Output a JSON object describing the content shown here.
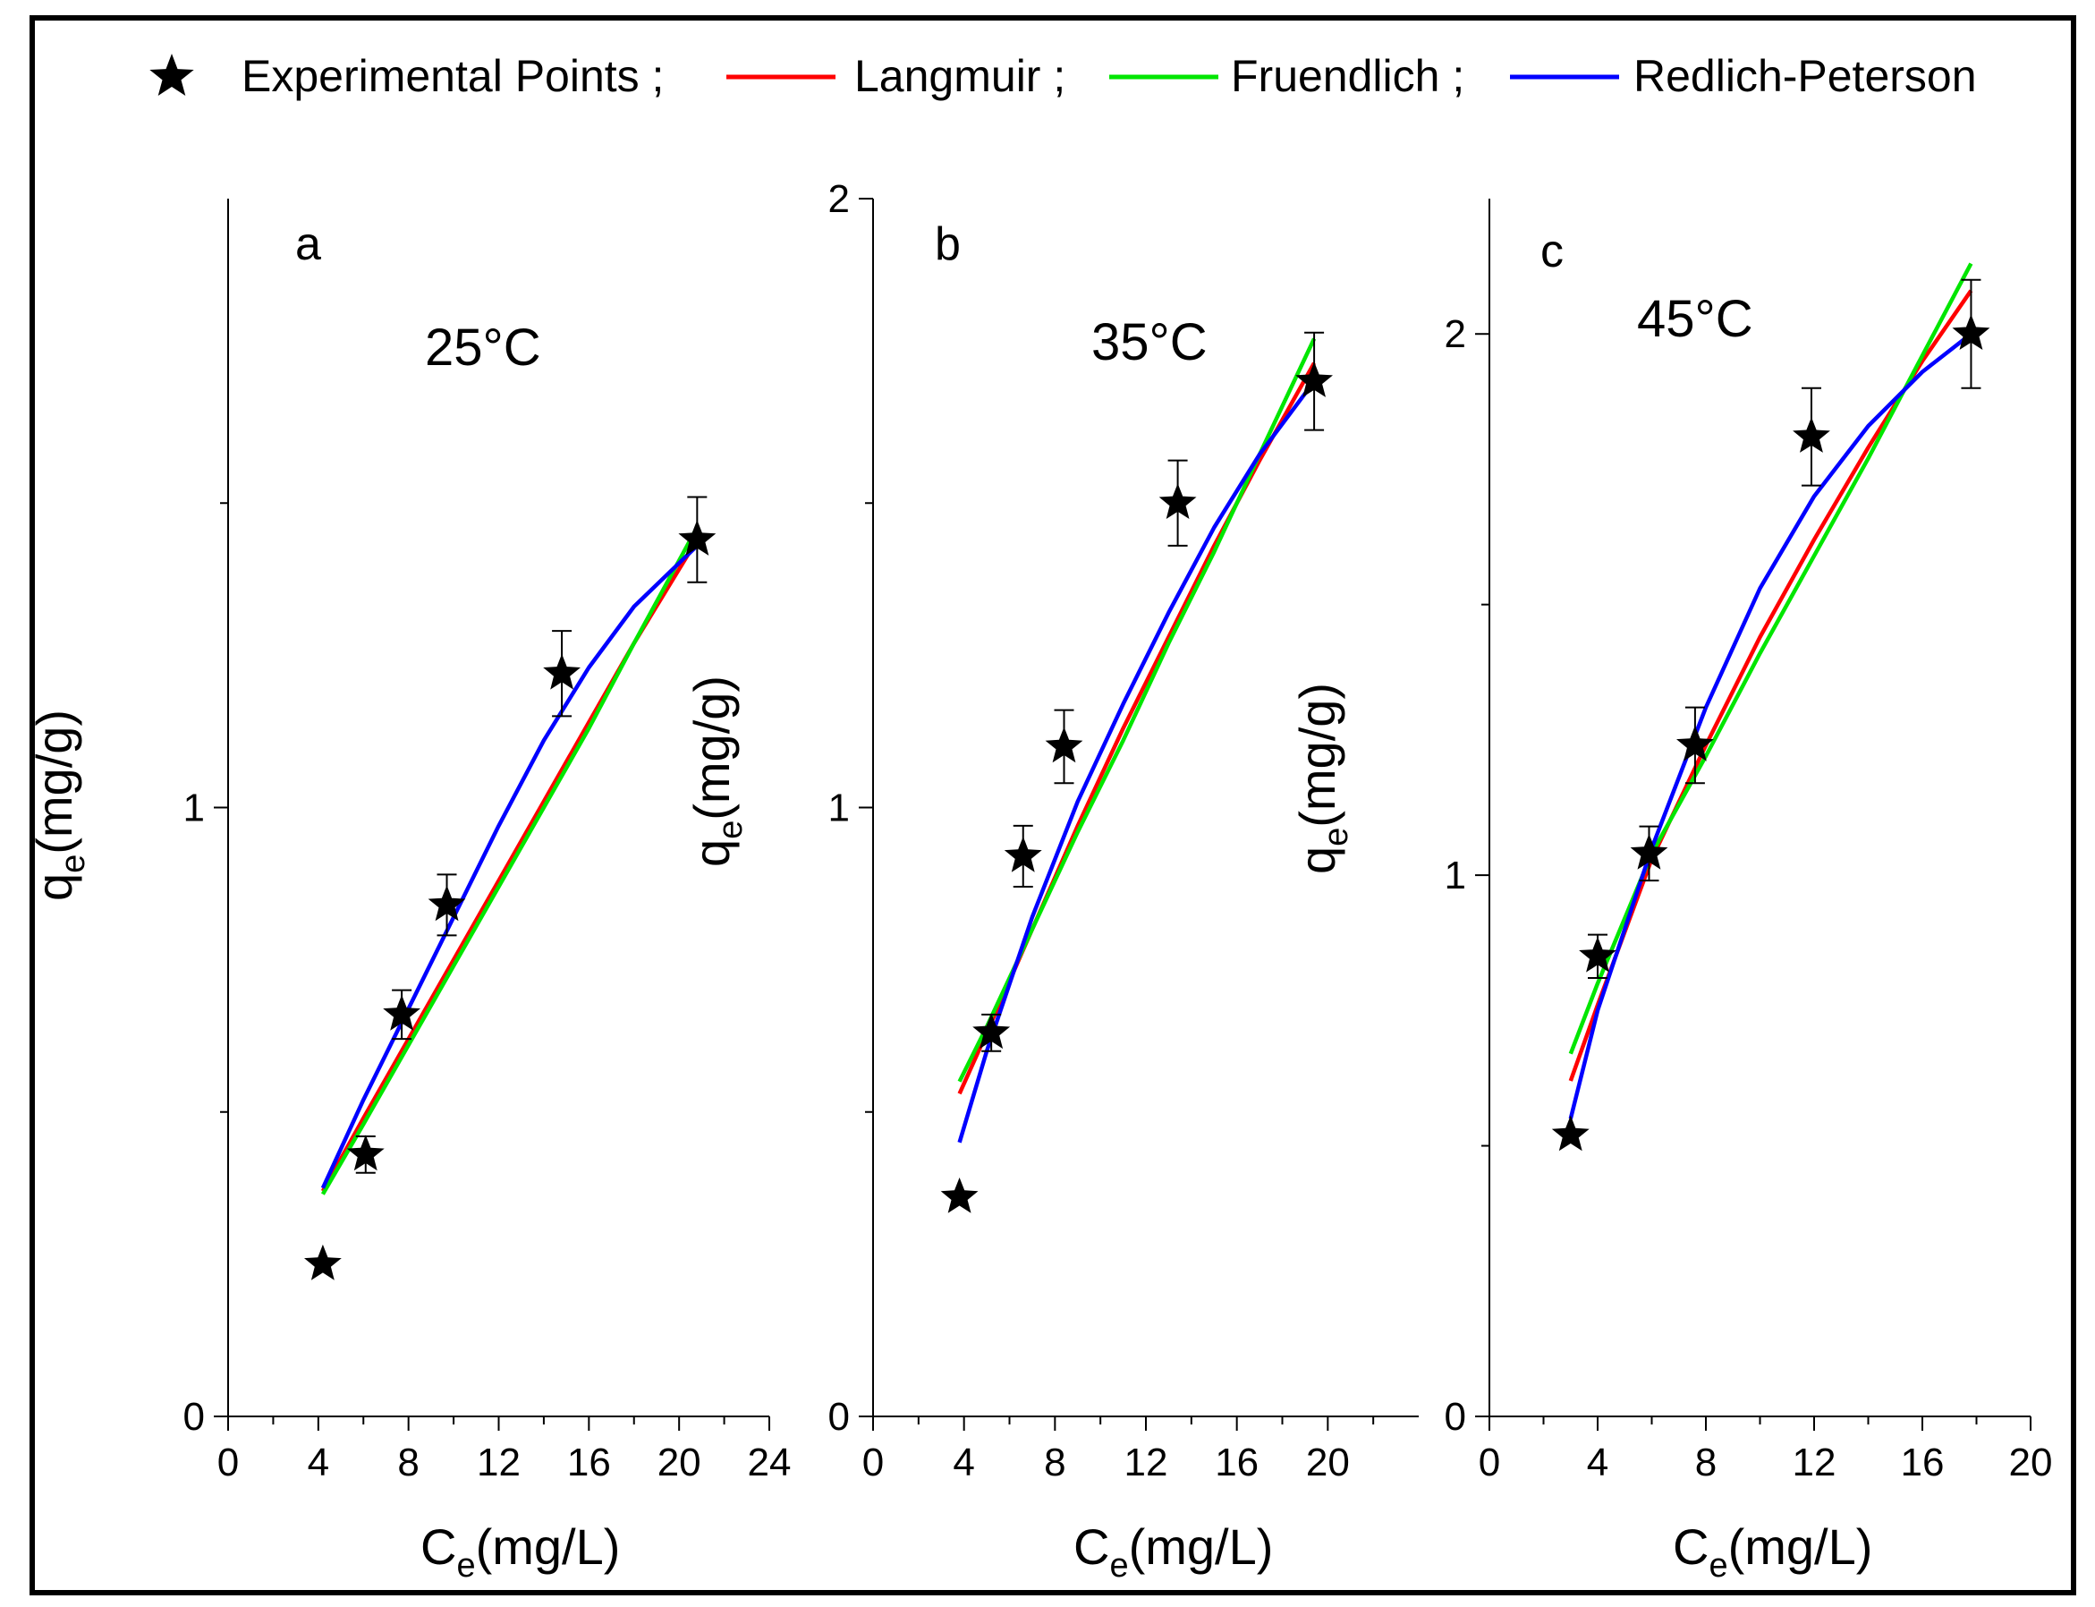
{
  "legend": {
    "items": [
      {
        "key": "experimental",
        "label": "Experimental Points ;",
        "color": "#000000",
        "marker": "star"
      },
      {
        "key": "langmuir",
        "label": "Langmuir ;",
        "color": "#ff0000"
      },
      {
        "key": "freundlich",
        "label": "Fruendlich ;",
        "color": "#00e600"
      },
      {
        "key": "redlich",
        "label": "Redlich-Peterson",
        "color": "#0000ff"
      }
    ]
  },
  "chart_data": [
    {
      "type": "scatter",
      "panel": "a",
      "title": "25°C",
      "xlabel": {
        "symbol": "C",
        "sub": "e",
        "unit": "(mg/L)"
      },
      "ylabel": {
        "symbol": "q",
        "sub": "e",
        "unit": "(mg/g)"
      },
      "xlim": [
        0,
        24
      ],
      "ylim": [
        0,
        2
      ],
      "x_ticks": [
        0,
        4,
        8,
        12,
        16,
        20,
        24
      ],
      "x_minor_ticks": [
        2,
        6,
        10,
        14,
        18,
        22
      ],
      "y_ticks": [
        0,
        1
      ],
      "y_minor_ticks": [
        0.5,
        1.5
      ],
      "experimental": {
        "x": [
          4.2,
          6.1,
          7.7,
          9.7,
          14.8,
          20.8
        ],
        "y": [
          0.25,
          0.43,
          0.66,
          0.84,
          1.22,
          1.44
        ],
        "err": [
          0,
          0.03,
          0.04,
          0.05,
          0.07,
          0.07
        ]
      },
      "series": [
        {
          "name": "Langmuir",
          "color": "#ff0000",
          "x": [
            4.2,
            6,
            8,
            10,
            12,
            14,
            16,
            18,
            20.8
          ],
          "y": [
            0.37,
            0.49,
            0.62,
            0.75,
            0.88,
            1.01,
            1.14,
            1.27,
            1.44
          ]
        },
        {
          "name": "Fruendlich",
          "color": "#00e600",
          "x": [
            4.2,
            6,
            8,
            10,
            12,
            14,
            16,
            18,
            20.8
          ],
          "y": [
            0.365,
            0.48,
            0.61,
            0.74,
            0.87,
            1.0,
            1.13,
            1.27,
            1.46
          ]
        },
        {
          "name": "Redlich-Peterson",
          "color": "#0000ff",
          "x": [
            4.2,
            6,
            8,
            10,
            12,
            14,
            16,
            18,
            20.8
          ],
          "y": [
            0.375,
            0.52,
            0.67,
            0.82,
            0.97,
            1.11,
            1.23,
            1.33,
            1.43
          ]
        }
      ]
    },
    {
      "type": "scatter",
      "panel": "b",
      "title": "35°C",
      "xlabel": {
        "symbol": "C",
        "sub": "e",
        "unit": "(mg/L)"
      },
      "ylabel": {
        "symbol": "q",
        "sub": "e",
        "unit": "(mg/g)"
      },
      "xlim": [
        0,
        24
      ],
      "ylim": [
        0,
        2
      ],
      "x_ticks": [
        0,
        4,
        8,
        12,
        16,
        20
      ],
      "x_minor_ticks": [
        2,
        6,
        10,
        14,
        18,
        22
      ],
      "y_ticks": [
        0,
        1,
        2
      ],
      "y_minor_ticks": [
        0.5,
        1.5
      ],
      "experimental": {
        "x": [
          3.8,
          5.2,
          6.6,
          8.4,
          13.4,
          19.4
        ],
        "y": [
          0.36,
          0.63,
          0.92,
          1.1,
          1.5,
          1.7
        ],
        "err": [
          0,
          0.03,
          0.05,
          0.06,
          0.07,
          0.08
        ]
      },
      "series": [
        {
          "name": "Langmuir",
          "color": "#ff0000",
          "x": [
            3.8,
            5,
            7,
            9,
            11,
            13,
            15,
            17,
            19.4
          ],
          "y": [
            0.53,
            0.63,
            0.8,
            0.97,
            1.13,
            1.28,
            1.43,
            1.57,
            1.73
          ]
        },
        {
          "name": "Fruendlich",
          "color": "#00e600",
          "x": [
            3.8,
            5,
            7,
            9,
            11,
            13,
            15,
            17,
            19.4
          ],
          "y": [
            0.55,
            0.64,
            0.8,
            0.96,
            1.11,
            1.27,
            1.42,
            1.58,
            1.77
          ]
        },
        {
          "name": "Redlich-Peterson",
          "color": "#0000ff",
          "x": [
            3.8,
            5,
            7,
            9,
            11,
            13,
            15,
            17,
            19.4
          ],
          "y": [
            0.45,
            0.6,
            0.82,
            1.01,
            1.17,
            1.32,
            1.46,
            1.58,
            1.7
          ]
        }
      ]
    },
    {
      "type": "scatter",
      "panel": "c",
      "title": "45°C",
      "xlabel": {
        "symbol": "C",
        "sub": "e",
        "unit": "(mg/L)"
      },
      "ylabel": {
        "symbol": "q",
        "sub": "e",
        "unit": "(mg/g)"
      },
      "xlim": [
        0,
        20
      ],
      "ylim": [
        0,
        2.25
      ],
      "x_ticks": [
        0,
        4,
        8,
        12,
        16,
        20
      ],
      "x_minor_ticks": [
        2,
        6,
        10,
        14,
        18
      ],
      "y_ticks": [
        0,
        1,
        2
      ],
      "y_minor_ticks": [
        0.5,
        1.5
      ],
      "experimental": {
        "x": [
          3,
          4,
          5.9,
          7.6,
          11.9,
          17.8
        ],
        "y": [
          0.52,
          0.85,
          1.04,
          1.24,
          1.81,
          2.0
        ],
        "err": [
          0,
          0.04,
          0.05,
          0.07,
          0.09,
          0.1
        ]
      },
      "series": [
        {
          "name": "Langmuir",
          "color": "#ff0000",
          "x": [
            3,
            4,
            6,
            8,
            10,
            12,
            14,
            16,
            17.8
          ],
          "y": [
            0.62,
            0.76,
            1.03,
            1.24,
            1.44,
            1.62,
            1.79,
            1.95,
            2.08
          ]
        },
        {
          "name": "Fruendlich",
          "color": "#00e600",
          "x": [
            3,
            4,
            6,
            8,
            10,
            12,
            14,
            16,
            17.8
          ],
          "y": [
            0.67,
            0.8,
            1.04,
            1.22,
            1.41,
            1.59,
            1.77,
            1.96,
            2.13
          ]
        },
        {
          "name": "Redlich-Peterson",
          "color": "#0000ff",
          "x": [
            3,
            4,
            6,
            8,
            10,
            12,
            14,
            16,
            17.8
          ],
          "y": [
            0.55,
            0.75,
            1.05,
            1.31,
            1.53,
            1.7,
            1.83,
            1.93,
            2.0
          ]
        }
      ]
    }
  ]
}
